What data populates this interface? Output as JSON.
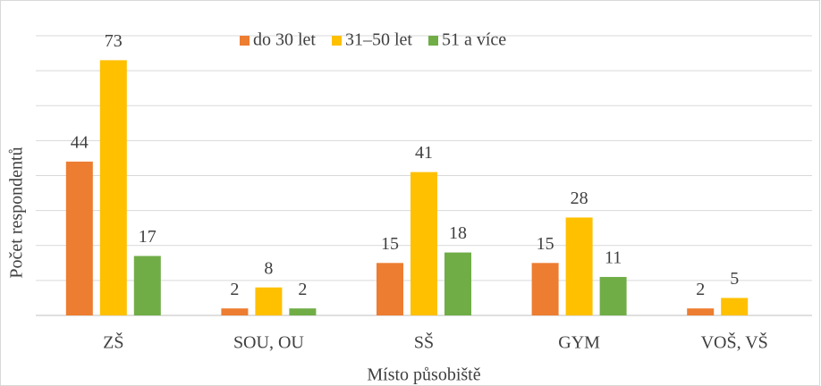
{
  "chart_data": {
    "type": "bar",
    "y_label": "Počet respondentů",
    "x_label": "Místo působiště",
    "categories": [
      "ZŠ",
      "SOU, OU",
      "SŠ",
      "GYM",
      "VOŠ, VŠ"
    ],
    "series": [
      {
        "name": "do 30 let",
        "color": "#ed7d31",
        "values": [
          44,
          2,
          15,
          15,
          2
        ]
      },
      {
        "name": "31–50 let",
        "color": "#ffc000",
        "values": [
          73,
          8,
          41,
          28,
          5
        ]
      },
      {
        "name": "51 a více",
        "color": "#70ad47",
        "values": [
          17,
          2,
          18,
          11,
          null
        ]
      }
    ],
    "ylim": [
      0,
      80
    ],
    "yticks": [
      0,
      10,
      20,
      30,
      40,
      50,
      60,
      70,
      80
    ],
    "grid": true,
    "legend": "top"
  }
}
